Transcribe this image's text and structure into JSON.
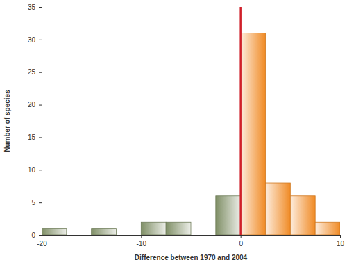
{
  "chart_data": {
    "type": "histogram",
    "x_label": "Difference between 1970 and 2004",
    "y_label": "Number of species",
    "bins": [
      -20,
      -17.5,
      -15,
      -12.5,
      -10,
      -7.5,
      -5,
      -2.5,
      0,
      2.5,
      5,
      7.5,
      10
    ],
    "values": [
      1,
      0,
      1,
      0,
      2,
      2,
      0,
      6,
      31,
      8,
      6,
      2
    ],
    "colors": [
      "#7f8f66",
      "#7f8f66",
      "#7f8f66",
      "#7f8f66",
      "#7f8f66",
      "#7f8f66",
      "#7f8f66",
      "#7f8f66",
      "#f08a24",
      "#f08a24",
      "#f08a24",
      "#f08a24"
    ],
    "vline": 0,
    "xlim": [
      -20,
      10
    ],
    "xticks": [
      -20,
      -10,
      0,
      10
    ],
    "ylim": [
      0,
      35
    ],
    "yticks": [
      0,
      5,
      10,
      15,
      20,
      25,
      30,
      35
    ],
    "grid": false
  }
}
